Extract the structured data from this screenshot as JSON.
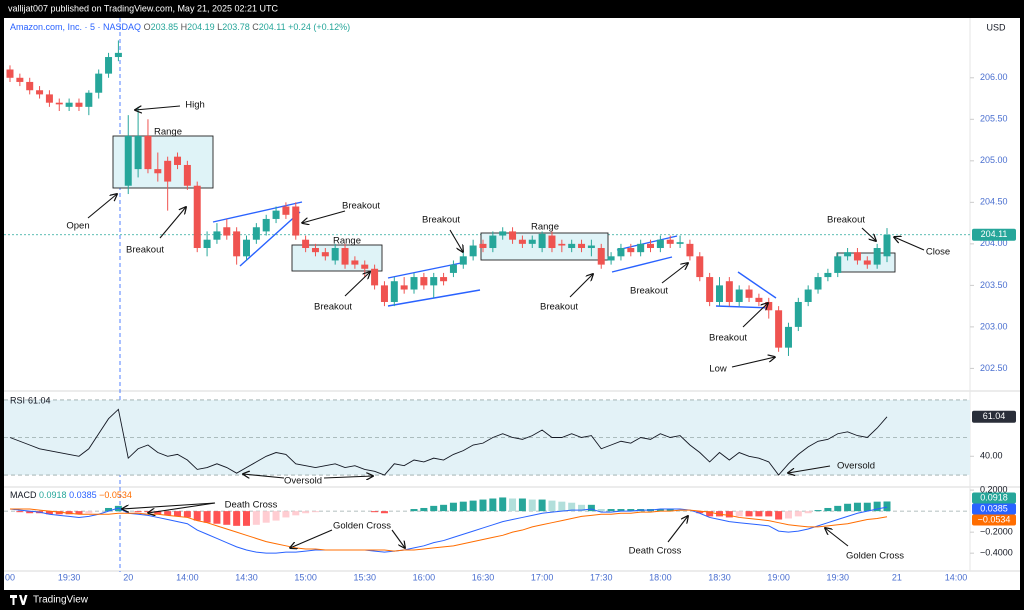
{
  "header": {
    "author": "vallijat007 published on TradingView.com, May 21, 2025 02:21 UTC",
    "symbol": "Amazon.com, Inc. · 5 · NASDAQ",
    "keys": [
      "O",
      "H",
      "L",
      "C"
    ],
    "change": "+0.24 (+0.12%)",
    "currency": "USD",
    "footer": "TradingView"
  },
  "chart_data": [
    {
      "type": "candlestick",
      "up_color": "#26a69a",
      "down_color": "#ef5350",
      "open": [
        206.1,
        206.0,
        205.95,
        205.85,
        205.8,
        205.7,
        205.65,
        205.7,
        205.65,
        205.82,
        206.05,
        206.25,
        204.7,
        204.9,
        205.3,
        204.9,
        205.0,
        205.05,
        204.95,
        204.7,
        203.95,
        204.05,
        204.2,
        204.15,
        203.85,
        204.05,
        204.15,
        204.3,
        204.45,
        204.45,
        204.05,
        203.95,
        203.9,
        203.8,
        203.95,
        203.8,
        203.75,
        203.7,
        203.5,
        203.3,
        203.5,
        203.45,
        203.6,
        203.5,
        203.6,
        203.65,
        203.75,
        203.85,
        204.0,
        203.95,
        204.1,
        204.15,
        204.05,
        204.0,
        203.95,
        204.1,
        204.0,
        203.95,
        204.0,
        203.95,
        203.95,
        203.8,
        203.85,
        203.95,
        203.9,
        204.0,
        203.95,
        204.05,
        204.0,
        204.0,
        203.85,
        203.6,
        203.3,
        203.55,
        203.3,
        203.45,
        203.35,
        203.3,
        203.2,
        202.75,
        203.0,
        203.3,
        203.45,
        203.6,
        203.65,
        203.85,
        203.9,
        203.8,
        203.75,
        203.85
      ],
      "high": [
        206.15,
        206.05,
        206.0,
        205.9,
        205.85,
        205.75,
        205.75,
        205.75,
        205.85,
        206.1,
        206.3,
        206.45,
        205.55,
        205.65,
        205.5,
        205.1,
        205.05,
        205.1,
        205.0,
        204.75,
        204.15,
        204.25,
        204.3,
        204.2,
        204.1,
        204.25,
        204.35,
        204.45,
        204.5,
        204.5,
        204.1,
        204.0,
        203.95,
        204.0,
        204.0,
        203.85,
        203.8,
        203.75,
        203.55,
        203.6,
        203.6,
        203.65,
        203.65,
        203.65,
        203.65,
        203.8,
        203.9,
        204.05,
        204.05,
        204.15,
        204.2,
        204.2,
        204.1,
        204.1,
        204.15,
        204.15,
        204.05,
        204.05,
        204.05,
        204.05,
        204.0,
        203.9,
        204.0,
        204.0,
        204.05,
        204.05,
        204.1,
        204.1,
        204.1,
        204.05,
        203.9,
        203.65,
        203.6,
        203.6,
        203.5,
        203.5,
        203.4,
        203.35,
        203.25,
        203.05,
        203.35,
        203.5,
        203.65,
        203.7,
        203.9,
        203.95,
        203.95,
        203.85,
        204.0,
        204.19
      ],
      "low": [
        205.95,
        205.9,
        205.8,
        205.75,
        205.65,
        205.6,
        205.6,
        205.6,
        205.55,
        205.75,
        206.0,
        206.2,
        204.6,
        204.8,
        204.85,
        204.75,
        204.4,
        204.9,
        204.65,
        203.9,
        203.85,
        204.0,
        204.05,
        203.75,
        203.8,
        204.0,
        204.1,
        204.25,
        204.3,
        204.05,
        203.9,
        203.85,
        203.8,
        203.75,
        203.7,
        203.7,
        203.6,
        203.45,
        203.25,
        203.25,
        203.4,
        203.4,
        203.45,
        203.35,
        203.5,
        203.6,
        203.7,
        203.8,
        203.9,
        203.9,
        204.05,
        204.0,
        203.95,
        203.95,
        203.9,
        203.9,
        203.9,
        203.9,
        203.9,
        203.85,
        203.7,
        203.75,
        203.8,
        203.85,
        203.85,
        203.9,
        203.9,
        203.95,
        203.95,
        203.8,
        203.55,
        203.25,
        203.25,
        203.25,
        203.25,
        203.3,
        203.25,
        203.1,
        202.7,
        202.65,
        202.95,
        203.25,
        203.4,
        203.55,
        203.6,
        203.8,
        203.75,
        203.7,
        203.7,
        203.78
      ],
      "close": [
        206.0,
        205.95,
        205.85,
        205.8,
        205.7,
        205.68,
        205.7,
        205.65,
        205.82,
        206.05,
        206.25,
        206.3,
        205.3,
        205.3,
        204.9,
        204.85,
        204.75,
        204.95,
        204.7,
        203.95,
        204.05,
        204.15,
        204.1,
        203.85,
        204.05,
        204.2,
        204.3,
        204.4,
        204.35,
        204.1,
        203.95,
        203.9,
        203.85,
        203.95,
        203.75,
        203.75,
        203.7,
        203.5,
        203.3,
        203.55,
        203.45,
        203.6,
        203.5,
        203.6,
        203.55,
        203.75,
        203.85,
        203.98,
        203.95,
        204.1,
        204.15,
        204.05,
        204.0,
        204.05,
        204.12,
        203.95,
        203.98,
        204.0,
        203.95,
        203.98,
        203.75,
        203.85,
        203.95,
        203.9,
        204.0,
        203.95,
        204.05,
        204.0,
        204.02,
        203.85,
        203.6,
        203.3,
        203.5,
        203.3,
        203.45,
        203.35,
        203.3,
        203.2,
        202.75,
        203.0,
        203.3,
        203.45,
        203.6,
        203.65,
        203.85,
        203.9,
        203.8,
        203.75,
        203.95,
        204.11
      ],
      "xticks": [
        "00",
        "19:30",
        "20",
        "14:00",
        "14:30",
        "15:00",
        "15:30",
        "16:00",
        "16:30",
        "17:00",
        "17:30",
        "18:00",
        "18:30",
        "19:00",
        "19:30",
        "21",
        "14:00"
      ],
      "ylim": [
        202.24,
        206.72
      ],
      "yticks": [
        {
          "value": 206,
          "label": "206.00"
        },
        {
          "value": 205.5,
          "label": "205.50"
        },
        {
          "value": 205,
          "label": "205.00"
        },
        {
          "value": 204.5,
          "label": "204.50"
        },
        {
          "value": 204,
          "label": "204.00"
        },
        {
          "value": 203.5,
          "label": "203.50"
        },
        {
          "value": 203,
          "label": "203.00"
        },
        {
          "value": 202.5,
          "label": "202.50"
        }
      ],
      "annotations": [
        "High",
        "Range",
        "Open",
        "Breakout",
        "Breakout",
        "Range",
        "Breakout",
        "Breakout",
        "Range",
        "Breakout",
        "Breakout",
        "Breakout",
        "Low",
        "Breakout",
        "Close"
      ]
    },
    {
      "type": "line",
      "title": "RSI",
      "color": "#131722",
      "values": [
        50,
        48,
        46,
        44,
        43,
        42,
        41,
        40,
        44,
        52,
        60,
        65,
        39,
        44,
        46,
        42,
        40,
        41,
        38,
        33,
        34,
        36,
        34,
        31,
        34,
        37,
        40,
        42,
        41,
        36,
        35,
        34,
        35,
        36,
        34,
        35,
        33,
        32,
        30,
        36,
        35,
        38,
        37,
        39,
        38,
        41,
        43,
        46,
        47,
        50,
        52,
        50,
        49,
        51,
        54,
        50,
        50,
        52,
        50,
        51,
        44,
        46,
        48,
        47,
        50,
        49,
        52,
        50,
        51,
        46,
        42,
        37,
        42,
        38,
        42,
        40,
        39,
        37,
        30,
        36,
        41,
        45,
        48,
        49,
        52,
        53,
        51,
        50,
        55,
        61.04
      ],
      "ylim": [
        24.7,
        73.7
      ],
      "bands": [
        70,
        50,
        30
      ],
      "band_fill": "#e3f2f7",
      "yticks": [
        {
          "value": 40,
          "label": "40.00"
        }
      ],
      "annotations": [
        "Oversold",
        "Oversold"
      ]
    },
    {
      "type": "macd",
      "title": "MACD",
      "histogram": {
        "colors": [
          "#26a69a",
          "#b2dfdb",
          "#ff5252",
          "#ffcdd2"
        ],
        "values": [
          0,
          -0.01,
          -0.02,
          -0.02,
          -0.03,
          -0.03,
          -0.03,
          -0.03,
          -0.02,
          0,
          0.03,
          0.05,
          0,
          -0.01,
          -0.01,
          -0.03,
          -0.04,
          -0.05,
          -0.06,
          -0.09,
          -0.11,
          -0.12,
          -0.13,
          -0.14,
          -0.14,
          -0.13,
          -0.11,
          -0.09,
          -0.06,
          -0.04,
          -0.02,
          -0.01,
          0,
          0,
          0,
          0,
          0,
          -0.01,
          -0.02,
          0,
          0,
          0.02,
          0.03,
          0.05,
          0.06,
          0.08,
          0.09,
          0.1,
          0.11,
          0.12,
          0.13,
          0.12,
          0.12,
          0.11,
          0.11,
          0.1,
          0.09,
          0.08,
          0.06,
          0.06,
          0.02,
          0.02,
          0.02,
          0.02,
          0.02,
          0.02,
          0.02,
          0.02,
          0.01,
          0,
          -0.02,
          -0.05,
          -0.05,
          -0.06,
          -0.05,
          -0.05,
          -0.05,
          -0.05,
          -0.08,
          -0.07,
          -0.05,
          -0.02,
          0.01,
          0.03,
          0.05,
          0.07,
          0.08,
          0.08,
          0.09,
          0.0918
        ]
      },
      "series": [
        {
          "color": "#2962ff",
          "values": [
            0.02,
            0.01,
            0,
            -0.01,
            -0.03,
            -0.04,
            -0.05,
            -0.06,
            -0.05,
            -0.03,
            0,
            0.03,
            -0.02,
            -0.03,
            -0.04,
            -0.06,
            -0.08,
            -0.1,
            -0.12,
            -0.18,
            -0.22,
            -0.26,
            -0.3,
            -0.34,
            -0.37,
            -0.39,
            -0.4,
            -0.4,
            -0.39,
            -0.39,
            -0.38,
            -0.37,
            -0.37,
            -0.37,
            -0.37,
            -0.37,
            -0.37,
            -0.38,
            -0.39,
            -0.38,
            -0.37,
            -0.35,
            -0.33,
            -0.3,
            -0.28,
            -0.25,
            -0.22,
            -0.19,
            -0.16,
            -0.13,
            -0.1,
            -0.08,
            -0.06,
            -0.04,
            -0.02,
            -0.01,
            0,
            0.01,
            0.01,
            0.02,
            -0.01,
            -0.01,
            0,
            0,
            0.01,
            0.01,
            0.02,
            0.02,
            0.02,
            0.01,
            -0.02,
            -0.06,
            -0.08,
            -0.1,
            -0.11,
            -0.12,
            -0.13,
            -0.14,
            -0.19,
            -0.2,
            -0.19,
            -0.17,
            -0.14,
            -0.11,
            -0.08,
            -0.05,
            -0.02,
            0,
            0.02,
            0.0385
          ]
        },
        {
          "color": "#ff6d00",
          "values": [
            0.02,
            0.02,
            0.02,
            0.01,
            0,
            -0.01,
            -0.02,
            -0.03,
            -0.03,
            -0.03,
            -0.03,
            -0.02,
            -0.02,
            -0.02,
            -0.03,
            -0.03,
            -0.04,
            -0.05,
            -0.06,
            -0.09,
            -0.11,
            -0.14,
            -0.17,
            -0.2,
            -0.23,
            -0.26,
            -0.29,
            -0.31,
            -0.33,
            -0.35,
            -0.36,
            -0.36,
            -0.37,
            -0.37,
            -0.37,
            -0.37,
            -0.37,
            -0.37,
            -0.37,
            -0.38,
            -0.37,
            -0.37,
            -0.36,
            -0.35,
            -0.34,
            -0.33,
            -0.31,
            -0.29,
            -0.27,
            -0.25,
            -0.23,
            -0.2,
            -0.18,
            -0.15,
            -0.13,
            -0.11,
            -0.09,
            -0.07,
            -0.05,
            -0.04,
            -0.03,
            -0.03,
            -0.02,
            -0.02,
            -0.01,
            -0.01,
            0,
            0,
            0.01,
            0.01,
            0,
            -0.01,
            -0.03,
            -0.04,
            -0.06,
            -0.07,
            -0.08,
            -0.09,
            -0.11,
            -0.13,
            -0.14,
            -0.15,
            -0.15,
            -0.14,
            -0.13,
            -0.12,
            -0.1,
            -0.08,
            -0.07,
            -0.0534
          ],
          "value_labels": [
            null,
            null,
            null,
            null,
            null,
            null,
            null,
            null,
            null,
            null,
            null,
            null,
            null,
            null,
            null,
            null,
            null,
            null,
            null,
            null,
            null,
            null,
            null,
            null,
            null,
            null,
            null,
            null,
            null,
            null,
            null,
            null,
            null,
            null,
            null,
            null,
            null,
            null,
            null,
            null,
            null,
            null,
            null,
            null,
            null,
            null,
            null,
            null,
            null,
            null,
            null,
            null,
            null,
            null,
            null,
            null,
            null,
            null,
            null,
            null,
            null,
            null,
            null,
            null,
            null,
            null,
            null,
            null,
            null,
            null,
            null,
            null,
            null,
            null,
            null,
            null,
            null,
            null,
            null,
            null,
            null,
            null,
            null,
            null,
            null,
            null,
            null,
            null,
            null,
            "−0.0534"
          ]
        }
      ],
      "ylim": [
        -0.56,
        0.22
      ],
      "yticks": [
        {
          "value": 0.2,
          "label": "0.2000"
        },
        {
          "value": -0.2,
          "label": "−0.2000"
        },
        {
          "value": -0.4,
          "label": "−0.4000"
        }
      ],
      "annotations": [
        "Death Cross",
        "Golden Cross",
        "Death Cross",
        "Golden Cross"
      ]
    }
  ]
}
